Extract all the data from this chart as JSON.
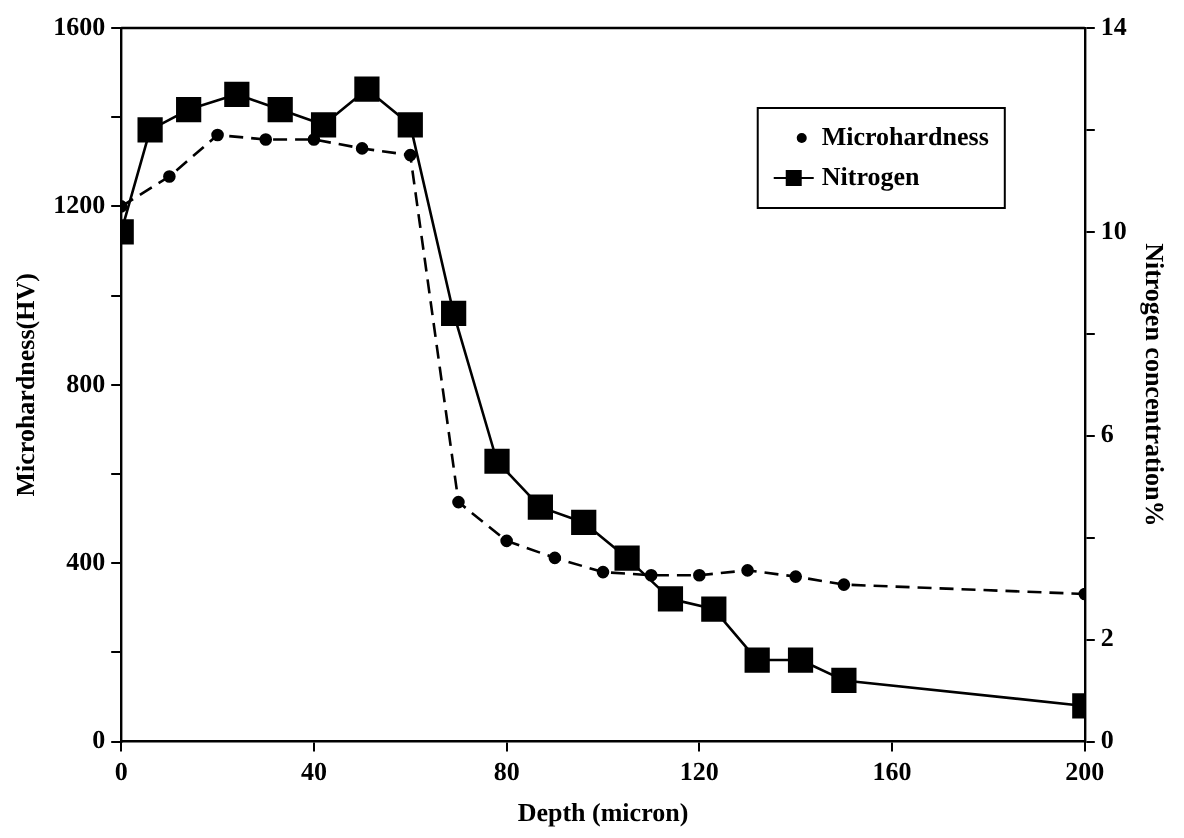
{
  "chart_data": {
    "type": "line",
    "xlabel": "Depth (micron)",
    "ylabel": "Microhardness(HV)",
    "y2label": "Nitrogen concentration%",
    "xlim": [
      0,
      200
    ],
    "xticks": [
      0,
      40,
      80,
      120,
      160,
      200
    ],
    "ylim": [
      0,
      1600
    ],
    "yticks": [
      0,
      {
        "value": 200,
        "label": null
      },
      400,
      {
        "value": 600,
        "label": null
      },
      800,
      {
        "value": 1000,
        "label": null
      },
      1200,
      {
        "value": 1400,
        "label": null
      },
      1600
    ],
    "y2lim": [
      0,
      14
    ],
    "y2ticks": [
      0,
      2,
      {
        "value": 4,
        "label": null
      },
      6,
      {
        "value": 8,
        "label": null
      },
      10,
      {
        "value": 12,
        "label": null
      },
      14
    ],
    "grid": false,
    "legend": "top right",
    "series": [
      {
        "name": "Microhardness",
        "color": "#000000",
        "marker": "circle",
        "line_style": "dashed",
        "x": [
          0,
          10,
          20,
          30,
          40,
          50,
          60,
          70,
          80,
          90,
          100,
          110,
          120,
          130,
          140,
          150,
          200
        ],
        "values": [
          1200,
          1267,
          1360,
          1350,
          1350,
          1330,
          1315,
          537,
          450,
          412,
          380,
          373,
          373,
          384,
          370,
          352,
          331
        ]
      },
      {
        "name": "Nitrogen",
        "color": "#000000",
        "marker": "square",
        "line_style": "solid",
        "axis": "y2",
        "x": [
          0,
          6,
          14,
          24,
          33,
          42,
          51,
          60,
          69,
          78,
          87,
          96,
          105,
          114,
          123,
          132,
          141,
          150,
          200
        ],
        "values": [
          10,
          12,
          12.4,
          12.7,
          12.4,
          12.1,
          12.8,
          12.1,
          8.4,
          5.5,
          4.6,
          4.3,
          3.6,
          2.8,
          2.6,
          1.6,
          1.6,
          1.2,
          0.7
        ]
      }
    ]
  }
}
